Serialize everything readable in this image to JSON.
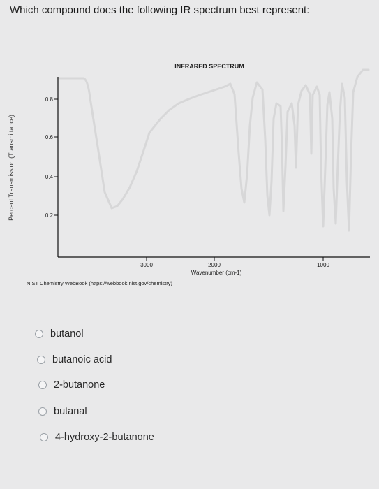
{
  "question": "Which compound does the following IR spectrum best represent:",
  "spectrum": {
    "title": "INFRARED SPECTRUM",
    "ylabel": "Percent Transmission (Transmittance)",
    "xlabel": "Wavenumber (cm-1)",
    "credit": "NIST Chemistry WebBook (https://webbook.nist.gov/chemistry)",
    "y_ticks": [
      "0.8",
      "0.6",
      "0.4",
      "0.2"
    ],
    "x_ticks": [
      "3000",
      "2000",
      "1000"
    ],
    "colors": {
      "line": "#d7d7d8",
      "axis": "#111111",
      "text": "#222222"
    }
  },
  "options": [
    {
      "label": "butanol"
    },
    {
      "label": "butanoic acid"
    },
    {
      "label": "2-butanone"
    },
    {
      "label": "butanal"
    },
    {
      "label": "4-hydroxy-2-butanone"
    }
  ]
}
